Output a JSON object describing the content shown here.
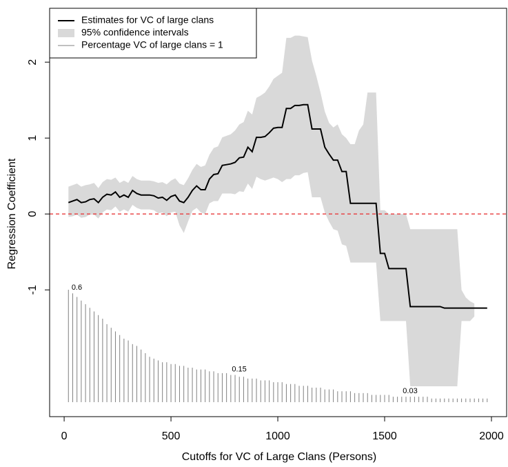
{
  "chart_data": {
    "type": "line",
    "x_label": "Cutoffs for VC of Large Clans (Persons)",
    "y_label": "Regression Coefficient",
    "xlim": [
      -68,
      2071
    ],
    "ylim": [
      -2.67,
      2.71
    ],
    "xticks": [
      0,
      500,
      1000,
      1500,
      2000
    ],
    "yticks": [
      -1,
      0,
      1,
      2
    ],
    "legend": "top-left",
    "reference_line": {
      "y": 0,
      "color": "#e8393a",
      "dashed": true
    },
    "x": [
      20,
      40,
      60,
      80,
      100,
      120,
      140,
      160,
      180,
      200,
      220,
      240,
      260,
      280,
      300,
      320,
      340,
      360,
      380,
      400,
      420,
      440,
      460,
      480,
      500,
      520,
      540,
      560,
      580,
      600,
      620,
      640,
      660,
      680,
      700,
      720,
      740,
      760,
      780,
      800,
      820,
      840,
      860,
      880,
      900,
      920,
      940,
      960,
      980,
      1000,
      1020,
      1040,
      1060,
      1080,
      1100,
      1120,
      1140,
      1160,
      1180,
      1200,
      1220,
      1240,
      1260,
      1280,
      1300,
      1320,
      1340,
      1360,
      1380,
      1400,
      1420,
      1440,
      1460,
      1480,
      1500,
      1520,
      1540,
      1560,
      1580,
      1600,
      1620,
      1640,
      1660,
      1680,
      1700,
      1720,
      1740,
      1760,
      1780,
      1800,
      1820,
      1840,
      1860,
      1880,
      1900,
      1920,
      1940,
      1960,
      1980
    ],
    "series": [
      {
        "name": "Estimates for VC of large clans",
        "kind": "line",
        "color": "#000000",
        "values": [
          0.15,
          0.17,
          0.19,
          0.15,
          0.16,
          0.19,
          0.2,
          0.15,
          0.22,
          0.26,
          0.25,
          0.29,
          0.22,
          0.25,
          0.22,
          0.31,
          0.27,
          0.25,
          0.25,
          0.25,
          0.24,
          0.21,
          0.22,
          0.18,
          0.23,
          0.25,
          0.17,
          0.15,
          0.22,
          0.31,
          0.37,
          0.32,
          0.32,
          0.46,
          0.52,
          0.53,
          0.64,
          0.65,
          0.66,
          0.68,
          0.74,
          0.75,
          0.88,
          0.82,
          1.01,
          1.01,
          1.02,
          1.07,
          1.13,
          1.14,
          1.14,
          1.39,
          1.39,
          1.43,
          1.43,
          1.44,
          1.44,
          1.12,
          1.12,
          1.12,
          0.88,
          0.79,
          0.71,
          0.71,
          0.56,
          0.56,
          0.14,
          0.14,
          0.14,
          0.14,
          0.14,
          0.14,
          0.14,
          -0.52,
          -0.52,
          -0.72,
          -0.72,
          -0.72,
          -0.72,
          -0.72,
          -1.22,
          -1.22,
          -1.22,
          -1.22,
          -1.22,
          -1.22,
          -1.22,
          -1.22,
          -1.24,
          -1.24,
          -1.24,
          -1.24,
          -1.24,
          -1.24,
          -1.24,
          -1.24,
          -1.24,
          -1.24,
          -1.24
        ]
      },
      {
        "name": "95% confidence intervals",
        "kind": "band",
        "color": "#d9d9d9",
        "upper": [
          0.36,
          0.38,
          0.4,
          0.36,
          0.38,
          0.39,
          0.41,
          0.34,
          0.42,
          0.46,
          0.45,
          0.48,
          0.41,
          0.44,
          0.41,
          0.5,
          0.46,
          0.44,
          0.44,
          0.44,
          0.43,
          0.41,
          0.42,
          0.39,
          0.44,
          0.47,
          0.4,
          0.38,
          0.47,
          0.58,
          0.66,
          0.62,
          0.64,
          0.78,
          0.87,
          0.89,
          1.01,
          1.03,
          1.05,
          1.1,
          1.18,
          1.21,
          1.36,
          1.31,
          1.53,
          1.56,
          1.6,
          1.68,
          1.78,
          1.82,
          1.86,
          2.32,
          2.32,
          2.35,
          2.35,
          2.34,
          2.33,
          2.02,
          1.82,
          1.6,
          1.35,
          1.2,
          1.14,
          1.18,
          1.05,
          1.0,
          0.92,
          0.92,
          1.1,
          1.18,
          1.6,
          1.6,
          1.6,
          0.05,
          0.05,
          0,
          0,
          0,
          0,
          0,
          -0.2,
          -0.2,
          -0.2,
          -0.2,
          -0.2,
          -0.2,
          -0.2,
          -0.2,
          -0.2,
          -0.2,
          -0.2,
          -0.2,
          -1.0,
          -1.1,
          -1.15,
          -1.18,
          null,
          null,
          null
        ],
        "lower": [
          -0.04,
          -0.03,
          -0.01,
          -0.05,
          -0.04,
          -0.01,
          -0.01,
          -0.06,
          0.02,
          0.06,
          0.05,
          0.1,
          0.03,
          0.06,
          0.03,
          0.12,
          0.08,
          0.06,
          0.06,
          0.06,
          0.05,
          0.01,
          0.02,
          -0.03,
          0.02,
          0.03,
          -0.15,
          -0.25,
          -0.1,
          0.04,
          0.08,
          0.02,
          0,
          0.14,
          0.17,
          0.17,
          0.27,
          0.27,
          0.27,
          0.26,
          0.3,
          0.29,
          0.4,
          0.33,
          0.49,
          0.46,
          0.44,
          0.46,
          0.48,
          0.46,
          0.42,
          0.46,
          0.46,
          0.51,
          0.51,
          0.54,
          0.55,
          0.22,
          0.22,
          0.22,
          0.02,
          -0.1,
          -0.2,
          -0.22,
          -0.4,
          -0.42,
          -0.64,
          -0.64,
          -0.64,
          -0.64,
          -0.64,
          -0.64,
          -0.64,
          -1.41,
          -1.41,
          -1.41,
          -1.41,
          -1.41,
          -1.41,
          -1.41,
          -2.27,
          -2.27,
          -2.27,
          -2.27,
          -2.27,
          -2.27,
          -2.27,
          -2.27,
          -2.27,
          -2.27,
          -2.27,
          -2.27,
          -1.41,
          -1.41,
          -1.41,
          -1.35,
          null,
          null,
          null
        ]
      },
      {
        "name": "Percentage VC of large clans = 1",
        "kind": "spikes",
        "color": "#808080",
        "values": [
          0.62,
          0.6,
          0.58,
          0.56,
          0.54,
          0.52,
          0.5,
          0.48,
          0.46,
          0.43,
          0.41,
          0.39,
          0.37,
          0.35,
          0.34,
          0.32,
          0.31,
          0.29,
          0.27,
          0.25,
          0.24,
          0.23,
          0.22,
          0.22,
          0.21,
          0.21,
          0.2,
          0.2,
          0.19,
          0.19,
          0.18,
          0.18,
          0.18,
          0.17,
          0.17,
          0.16,
          0.16,
          0.16,
          0.15,
          0.15,
          0.14,
          0.14,
          0.13,
          0.13,
          0.13,
          0.12,
          0.12,
          0.12,
          0.11,
          0.11,
          0.11,
          0.1,
          0.1,
          0.1,
          0.09,
          0.09,
          0.09,
          0.08,
          0.08,
          0.08,
          0.07,
          0.07,
          0.07,
          0.06,
          0.06,
          0.06,
          0.06,
          0.05,
          0.05,
          0.05,
          0.05,
          0.04,
          0.04,
          0.04,
          0.04,
          0.04,
          0.03,
          0.03,
          0.03,
          0.03,
          0.03,
          0.03,
          0.03,
          0.03,
          0.03,
          0.02,
          0.02,
          0.02,
          0.02,
          0.02,
          0.02,
          0.02,
          0.02,
          0.02,
          0.02,
          0.02,
          0.02,
          0.02,
          0.02
        ],
        "value_labels": [
          null,
          "0.6",
          null,
          null,
          null,
          null,
          null,
          null,
          null,
          null,
          null,
          null,
          null,
          null,
          null,
          null,
          null,
          null,
          null,
          null,
          null,
          null,
          null,
          null,
          null,
          null,
          null,
          null,
          null,
          null,
          null,
          null,
          null,
          null,
          null,
          null,
          null,
          null,
          null,
          "0.15",
          null,
          null,
          null,
          null,
          null,
          null,
          null,
          null,
          null,
          null,
          null,
          null,
          null,
          null,
          null,
          null,
          null,
          null,
          null,
          null,
          null,
          null,
          null,
          null,
          null,
          null,
          null,
          null,
          null,
          null,
          null,
          null,
          null,
          null,
          null,
          null,
          null,
          null,
          null,
          "0.03",
          null,
          null,
          null,
          null,
          null,
          null,
          null,
          null,
          null,
          null,
          null,
          null,
          null,
          null,
          null,
          null,
          null,
          null,
          null
        ]
      }
    ]
  }
}
